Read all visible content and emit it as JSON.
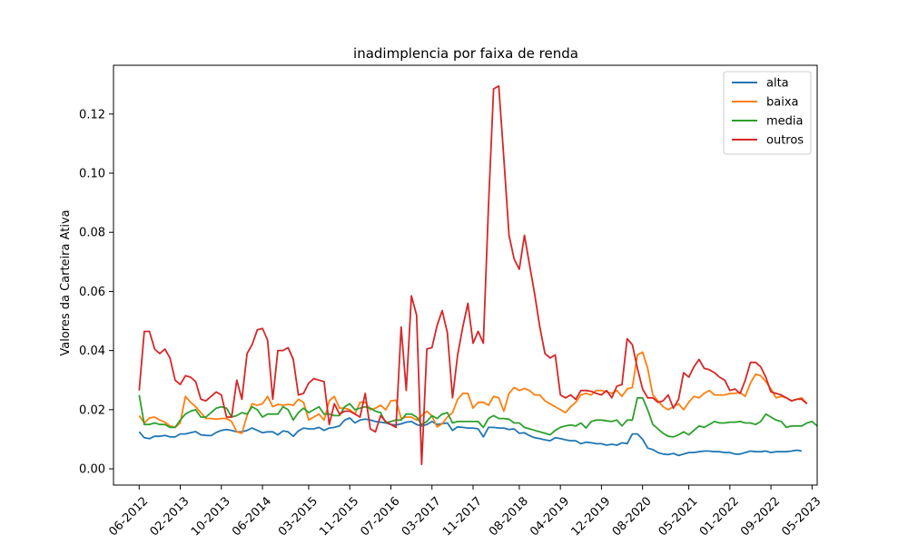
{
  "chart_data": {
    "type": "line",
    "title": "inadimplencia por faixa de renda",
    "xlabel": "",
    "ylabel": "Valores da Carteira Ativa",
    "ylim": [
      -0.0055,
      0.1365
    ],
    "yticks": [
      0.0,
      0.02,
      0.04,
      0.06,
      0.08,
      0.1,
      0.12
    ],
    "ytick_labels": [
      "0.00",
      "0.02",
      "0.04",
      "0.06",
      "0.08",
      "0.10",
      "0.12"
    ],
    "x_start": "2012-06",
    "xlim": [
      "2012-01",
      "2023-06"
    ],
    "xtick_labels": [
      "06-2012",
      "02-2013",
      "10-2013",
      "06-2014",
      "03-2015",
      "11-2015",
      "07-2016",
      "03-2017",
      "11-2017",
      "08-2018",
      "04-2019",
      "12-2019",
      "08-2020",
      "05-2021",
      "01-2022",
      "09-2022",
      "05-2023"
    ],
    "xtick_dates": [
      "2012-06",
      "2013-02",
      "2013-10",
      "2014-06",
      "2015-03",
      "2015-11",
      "2016-07",
      "2017-03",
      "2017-11",
      "2018-08",
      "2019-04",
      "2019-12",
      "2020-08",
      "2021-05",
      "2022-01",
      "2022-09",
      "2023-05"
    ],
    "grid": false,
    "legend_position": "top-right",
    "series": [
      {
        "name": "alta",
        "color": "#1f77b4",
        "values": [
          0.0125,
          0.0105,
          0.0102,
          0.011,
          0.011,
          0.0113,
          0.0108,
          0.0108,
          0.0118,
          0.0118,
          0.0122,
          0.0126,
          0.0115,
          0.0113,
          0.0112,
          0.0123,
          0.013,
          0.0133,
          0.013,
          0.0125,
          0.0125,
          0.013,
          0.0138,
          0.013,
          0.0122,
          0.0125,
          0.0125,
          0.0115,
          0.0128,
          0.0125,
          0.011,
          0.0128,
          0.0138,
          0.0135,
          0.0135,
          0.014,
          0.013,
          0.0138,
          0.014,
          0.0145,
          0.0165,
          0.0172,
          0.0155,
          0.0165,
          0.0168,
          0.0165,
          0.016,
          0.0158,
          0.0155,
          0.015,
          0.0148,
          0.0152,
          0.0158,
          0.016,
          0.015,
          0.0145,
          0.015,
          0.016,
          0.015,
          0.0153,
          0.0155,
          0.013,
          0.0142,
          0.014,
          0.0138,
          0.0138,
          0.0135,
          0.0108,
          0.014,
          0.014,
          0.0138,
          0.0138,
          0.0133,
          0.0135,
          0.012,
          0.0122,
          0.0112,
          0.0105,
          0.0102,
          0.0098,
          0.0095,
          0.0105,
          0.0102,
          0.0098,
          0.0095,
          0.0095,
          0.0085,
          0.009,
          0.0088,
          0.0085,
          0.0085,
          0.008,
          0.0083,
          0.008,
          0.0088,
          0.0085,
          0.0118,
          0.0118,
          0.01,
          0.007,
          0.0065,
          0.0055,
          0.005,
          0.0048,
          0.0052,
          0.0045,
          0.005,
          0.0055,
          0.0055,
          0.0058,
          0.006,
          0.006,
          0.0058,
          0.0058,
          0.0055,
          0.0055,
          0.005,
          0.005,
          0.0055,
          0.006,
          0.0058,
          0.0058,
          0.006,
          0.0055,
          0.0058,
          0.0058,
          0.0058,
          0.006,
          0.0063,
          0.006
        ]
      },
      {
        "name": "baixa",
        "color": "#ff7f0e",
        "values": [
          0.018,
          0.0155,
          0.0172,
          0.0175,
          0.0165,
          0.0158,
          0.0145,
          0.014,
          0.0155,
          0.0245,
          0.0225,
          0.021,
          0.019,
          0.017,
          0.017,
          0.0168,
          0.017,
          0.017,
          0.016,
          0.0125,
          0.012,
          0.018,
          0.022,
          0.0215,
          0.022,
          0.0245,
          0.021,
          0.0218,
          0.0215,
          0.0218,
          0.0215,
          0.0235,
          0.0225,
          0.0165,
          0.0175,
          0.0185,
          0.0165,
          0.023,
          0.0245,
          0.0205,
          0.0205,
          0.02,
          0.0185,
          0.0225,
          0.0225,
          0.02,
          0.0205,
          0.0215,
          0.02,
          0.023,
          0.0232,
          0.017,
          0.0175,
          0.0175,
          0.0165,
          0.018,
          0.0195,
          0.0178,
          0.0142,
          0.0152,
          0.0175,
          0.019,
          0.0235,
          0.0255,
          0.0255,
          0.0205,
          0.0225,
          0.0225,
          0.0215,
          0.0245,
          0.024,
          0.0195,
          0.0255,
          0.0275,
          0.0265,
          0.0272,
          0.0265,
          0.025,
          0.025,
          0.023,
          0.022,
          0.021,
          0.02,
          0.019,
          0.021,
          0.0225,
          0.025,
          0.0255,
          0.025,
          0.0265,
          0.0265,
          0.026,
          0.0255,
          0.0265,
          0.0245,
          0.027,
          0.0275,
          0.0385,
          0.0395,
          0.034,
          0.025,
          0.023,
          0.021,
          0.02,
          0.021,
          0.022,
          0.02,
          0.0225,
          0.0245,
          0.024,
          0.0255,
          0.0265,
          0.025,
          0.025,
          0.025,
          0.0255,
          0.0255,
          0.0258,
          0.0245,
          0.029,
          0.032,
          0.0315,
          0.0295,
          0.027,
          0.024,
          0.0245,
          0.024,
          0.023,
          0.0235,
          0.024,
          0.022
        ]
      },
      {
        "name": "media",
        "color": "#2ca02c",
        "values": [
          0.025,
          0.015,
          0.015,
          0.0155,
          0.015,
          0.015,
          0.014,
          0.014,
          0.0165,
          0.0185,
          0.0195,
          0.02,
          0.0175,
          0.0175,
          0.019,
          0.0205,
          0.021,
          0.0205,
          0.0175,
          0.018,
          0.019,
          0.0185,
          0.021,
          0.02,
          0.0175,
          0.0185,
          0.0185,
          0.0185,
          0.021,
          0.02,
          0.0165,
          0.019,
          0.0205,
          0.019,
          0.02,
          0.021,
          0.0185,
          0.0185,
          0.018,
          0.018,
          0.021,
          0.022,
          0.02,
          0.0205,
          0.021,
          0.0205,
          0.0195,
          0.019,
          0.0155,
          0.016,
          0.0165,
          0.0165,
          0.0185,
          0.0185,
          0.0175,
          0.015,
          0.016,
          0.018,
          0.017,
          0.0185,
          0.019,
          0.0155,
          0.016,
          0.016,
          0.016,
          0.016,
          0.016,
          0.014,
          0.017,
          0.018,
          0.017,
          0.017,
          0.0168,
          0.0155,
          0.0155,
          0.014,
          0.0135,
          0.013,
          0.0125,
          0.012,
          0.0115,
          0.013,
          0.014,
          0.0145,
          0.0148,
          0.0145,
          0.0155,
          0.0138,
          0.016,
          0.0165,
          0.0165,
          0.0162,
          0.016,
          0.0165,
          0.0145,
          0.0165,
          0.0165,
          0.024,
          0.024,
          0.02,
          0.015,
          0.0135,
          0.012,
          0.011,
          0.0108,
          0.0115,
          0.0125,
          0.0115,
          0.013,
          0.0145,
          0.014,
          0.015,
          0.016,
          0.0155,
          0.0155,
          0.0158,
          0.0158,
          0.016,
          0.0155,
          0.0155,
          0.015,
          0.016,
          0.0185,
          0.0175,
          0.0165,
          0.016,
          0.014,
          0.0145,
          0.0145,
          0.0145,
          0.0155,
          0.016,
          0.0145
        ]
      },
      {
        "name": "outros",
        "color": "#d62728",
        "values": [
          0.0265,
          0.0465,
          0.0465,
          0.0405,
          0.039,
          0.0405,
          0.0375,
          0.03,
          0.0285,
          0.0315,
          0.031,
          0.0295,
          0.0235,
          0.023,
          0.0245,
          0.026,
          0.025,
          0.0175,
          0.0175,
          0.03,
          0.0235,
          0.039,
          0.042,
          0.047,
          0.0475,
          0.0435,
          0.0235,
          0.04,
          0.04,
          0.041,
          0.037,
          0.025,
          0.0255,
          0.029,
          0.0305,
          0.03,
          0.0295,
          0.015,
          0.022,
          0.0185,
          0.0195,
          0.0195,
          0.0185,
          0.0175,
          0.0255,
          0.0135,
          0.0125,
          0.018,
          0.016,
          0.015,
          0.014,
          0.048,
          0.0265,
          0.0585,
          0.052,
          0.0015,
          0.0405,
          0.041,
          0.0485,
          0.0535,
          0.046,
          0.024,
          0.0385,
          0.048,
          0.056,
          0.0425,
          0.0465,
          0.0425,
          0.089,
          0.1285,
          0.1295,
          0.105,
          0.079,
          0.071,
          0.0675,
          0.079,
          0.069,
          0.059,
          0.048,
          0.039,
          0.0375,
          0.0385,
          0.025,
          0.024,
          0.025,
          0.0235,
          0.0265,
          0.0265,
          0.0262,
          0.0255,
          0.025,
          0.0265,
          0.024,
          0.028,
          0.0285,
          0.044,
          0.042,
          0.034,
          0.027,
          0.024,
          0.024,
          0.0225,
          0.023,
          0.025,
          0.0205,
          0.0235,
          0.0325,
          0.031,
          0.0345,
          0.037,
          0.034,
          0.0335,
          0.0325,
          0.031,
          0.03,
          0.0265,
          0.027,
          0.0255,
          0.03,
          0.036,
          0.036,
          0.0345,
          0.031,
          0.026,
          0.0255,
          0.025,
          0.024,
          0.023,
          0.0235,
          0.0235,
          0.022
        ]
      }
    ]
  }
}
